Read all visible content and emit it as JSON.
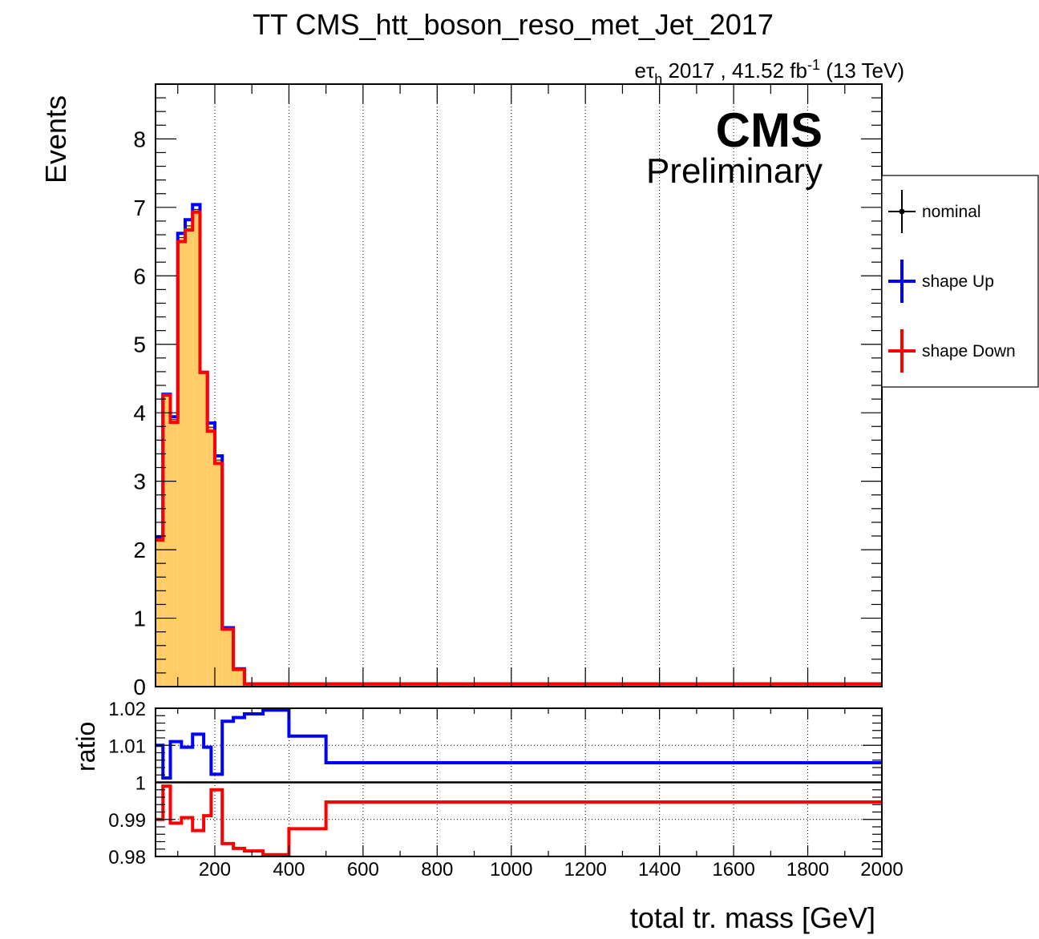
{
  "header": {
    "title": "TT CMS_htt_boson_reso_met_Jet_2017",
    "lumi_prefix": "eτ",
    "lumi_sub": "h",
    "lumi_main": " 2017 , 41.52 fb",
    "lumi_sup": "-1",
    "lumi_suffix": " (13 TeV)",
    "cms_label": "CMS",
    "preliminary_label": "Preliminary"
  },
  "legend": {
    "nominal": "nominal",
    "up": "shape Up",
    "down": "shape Down"
  },
  "colors": {
    "fill": "#ffcc66",
    "nominal": "#000000",
    "up": "#0000ff",
    "down": "#ff0000"
  },
  "chart_data": [
    {
      "type": "histogram",
      "xlabel": "",
      "ylabel": "Events",
      "xlim": [
        40,
        2000
      ],
      "ylim": [
        0,
        8.8
      ],
      "grid": "vertical dotted",
      "legend_position": "right, outside plot",
      "edges": [
        40,
        60,
        80,
        100,
        120,
        140,
        160,
        180,
        200,
        220,
        250,
        280,
        320,
        400,
        500,
        2000
      ],
      "series": [
        {
          "name": "nominal",
          "values": [
            2.17,
            4.26,
            3.9,
            6.56,
            6.73,
            6.97,
            4.58,
            3.79,
            3.31,
            0.85,
            0.25,
            0.04,
            0.04,
            0.04,
            0.04
          ]
        },
        {
          "name": "shape Up",
          "values": [
            2.19,
            4.27,
            3.94,
            6.62,
            6.82,
            7.04,
            4.59,
            3.85,
            3.37,
            0.86,
            0.26,
            0.04,
            0.04,
            0.04,
            0.04
          ]
        },
        {
          "name": "shape Down",
          "values": [
            2.14,
            4.26,
            3.86,
            6.5,
            6.67,
            6.93,
            4.59,
            3.73,
            3.26,
            0.84,
            0.25,
            0.04,
            0.04,
            0.04,
            0.04
          ]
        }
      ],
      "yticks": [
        "0",
        "1",
        "2",
        "3",
        "4",
        "5",
        "6",
        "7",
        "8"
      ]
    },
    {
      "type": "line",
      "ylabel": "ratio",
      "xlabel": "total tr. mass [GeV]",
      "xlim": [
        40,
        2000
      ],
      "ylim": [
        0.98,
        1.02
      ],
      "reference_line": 1,
      "edges": [
        40,
        60,
        80,
        110,
        140,
        170,
        190,
        220,
        250,
        280,
        330,
        400,
        500,
        2000
      ],
      "series": [
        {
          "name": "shape Up",
          "values": [
            1.01,
            1.0012,
            1.011,
            1.0095,
            1.013,
            1.0095,
            1.0022,
            1.0165,
            1.0175,
            1.0185,
            1.0195,
            1.0125,
            1.0053
          ]
        },
        {
          "name": "shape Down",
          "values": [
            0.99,
            0.999,
            0.989,
            0.9905,
            0.987,
            0.991,
            0.998,
            0.9835,
            0.9822,
            0.9815,
            0.9805,
            0.9875,
            0.9947
          ]
        }
      ],
      "yticks": [
        "0.98",
        "0.99",
        "1",
        "1.01",
        "1.02"
      ],
      "xticks": [
        "200",
        "400",
        "600",
        "800",
        "1000",
        "1200",
        "1400",
        "1600",
        "1800",
        "2000"
      ]
    }
  ]
}
